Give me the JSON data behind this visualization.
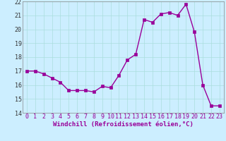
{
  "x": [
    0,
    1,
    2,
    3,
    4,
    5,
    6,
    7,
    8,
    9,
    10,
    11,
    12,
    13,
    14,
    15,
    16,
    17,
    18,
    19,
    20,
    21,
    22,
    23
  ],
  "y": [
    17.0,
    17.0,
    16.8,
    16.5,
    16.2,
    15.6,
    15.6,
    15.6,
    15.5,
    15.9,
    15.8,
    16.7,
    17.8,
    18.2,
    20.7,
    20.5,
    21.1,
    21.2,
    21.0,
    21.8,
    19.8,
    16.0,
    14.5,
    14.5
  ],
  "line_color": "#990099",
  "marker": "s",
  "marker_size": 2.2,
  "linewidth": 1.0,
  "xlabel": "Windchill (Refroidissement éolien,°C)",
  "xlabel_fontsize": 6.5,
  "xlim": [
    -0.5,
    23.5
  ],
  "ylim": [
    14,
    22
  ],
  "yticks": [
    14,
    15,
    16,
    17,
    18,
    19,
    20,
    21,
    22
  ],
  "xticks": [
    0,
    1,
    2,
    3,
    4,
    5,
    6,
    7,
    8,
    9,
    10,
    11,
    12,
    13,
    14,
    15,
    16,
    17,
    18,
    19,
    20,
    21,
    22,
    23
  ],
  "grid_color": "#aadddd",
  "bg_color": "#cceeff",
  "tick_fontsize": 6.0,
  "fig_bg": "#cceeff",
  "spine_color": "#888888"
}
